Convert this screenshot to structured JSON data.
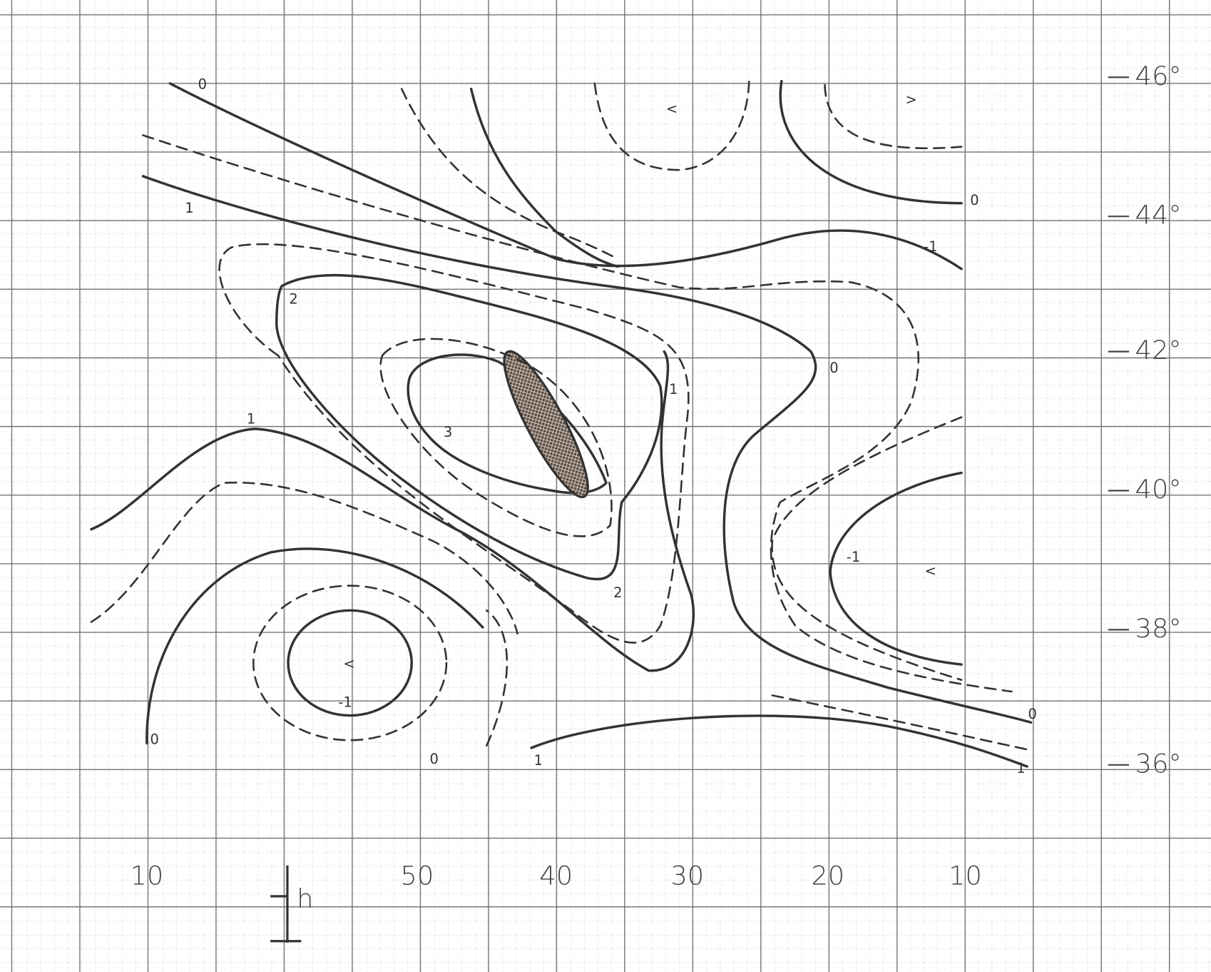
{
  "x_labels": [
    "10",
    "50",
    "40",
    "30",
    "20",
    "10"
  ],
  "y_labels": [
    "46°",
    "44°",
    "42°",
    "40°",
    "38°",
    "36°"
  ],
  "scale_label": "h",
  "contour_labels": [
    "0",
    "1",
    "-1",
    "0",
    "2",
    "0",
    "3",
    "1",
    "1",
    "2",
    "-1",
    "<",
    "<",
    "-1",
    "0",
    "0",
    "1",
    "0",
    "1",
    "<",
    ">"
  ]
}
